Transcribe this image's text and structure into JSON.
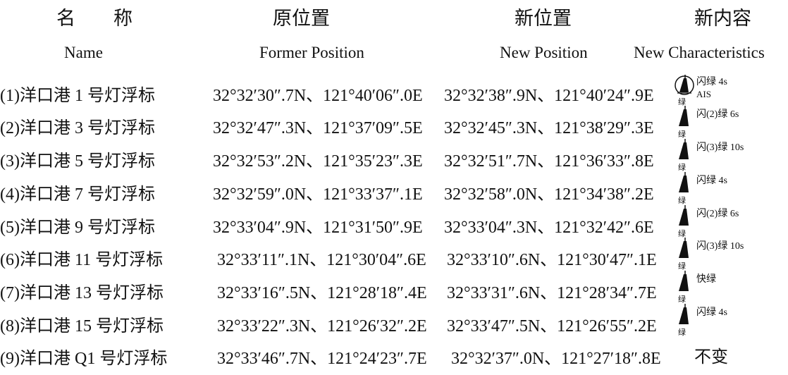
{
  "header": {
    "name_cn": "名　　称",
    "former_cn": "原位置",
    "new_cn": "新位置",
    "content_cn": "新内容",
    "name_en": "Name",
    "former_en": "Former Position",
    "new_en": "New Position",
    "content_en": "New Characteristics"
  },
  "rows": [
    {
      "name": "(1)洋口港 1 号灯浮标",
      "former": "32°32′30″.7N、121°40′06″.0E",
      "new": "32°32′38″.9N、121°40′24″.9E",
      "characteristic": "闪绿 4s",
      "extra": "AIS",
      "green_label": "绿",
      "symbol": "buoy-circle-icon"
    },
    {
      "name": "(2)洋口港 3 号灯浮标",
      "former": "32°32′47″.3N、121°37′09″.5E",
      "new": "32°32′45″.3N、121°38′29″.3E",
      "characteristic": "闪(2)绿 6s",
      "green_label": "绿",
      "symbol": "buoy-icon"
    },
    {
      "name": "(3)洋口港 5 号灯浮标",
      "former": "32°32′53″.2N、121°35′23″.3E",
      "new": "32°32′51″.7N、121°36′33″.8E",
      "characteristic": "闪(3)绿 10s",
      "green_label": "绿",
      "symbol": "buoy-icon"
    },
    {
      "name": "(4)洋口港 7 号灯浮标",
      "former": "32°32′59″.0N、121°33′37″.1E",
      "new": "32°32′58″.0N、121°34′38″.2E",
      "characteristic": "闪绿 4s",
      "green_label": "绿",
      "symbol": "buoy-icon"
    },
    {
      "name": "(5)洋口港 9 号灯浮标",
      "former": "32°33′04″.9N、121°31′50″.9E",
      "new": "32°33′04″.3N、121°32′42″.6E",
      "characteristic": "闪(2)绿 6s",
      "green_label": "绿",
      "symbol": "buoy-icon"
    },
    {
      "name": "(6)洋口港 11 号灯浮标",
      "former": "32°33′11″.1N、121°30′04″.6E",
      "new": "32°33′10″.6N、121°30′47″.1E",
      "characteristic": "闪(3)绿 10s",
      "green_label": "绿",
      "symbol": "buoy-icon"
    },
    {
      "name": "(7)洋口港 13 号灯浮标",
      "former": "32°33′16″.5N、121°28′18″.4E",
      "new": "32°33′31″.6N、121°28′34″.7E",
      "characteristic": "快绿",
      "green_label": "绿",
      "symbol": "buoy-icon"
    },
    {
      "name": "(8)洋口港 15 号灯浮标",
      "former": "32°33′22″.3N、121°26′32″.2E",
      "new": "32°33′47″.5N、121°26′55″.2E",
      "characteristic": "闪绿 4s",
      "green_label": "绿",
      "symbol": "buoy-icon"
    },
    {
      "name": "(9)洋口港 Q1 号灯浮标",
      "former": "32°33′46″.7N、121°24′23″.7E",
      "new": "32°32′37″.0N、121°27′18″.8E",
      "characteristic": "",
      "unchanged": "不变"
    }
  ]
}
